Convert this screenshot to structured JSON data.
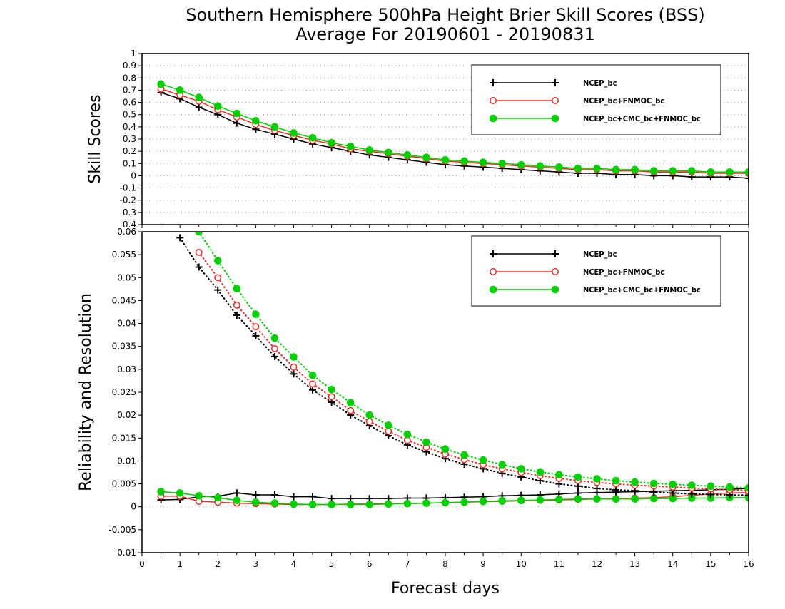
{
  "title": {
    "line1": "Southern Hemisphere 500hPa Height Brier Skill Scores (BSS)",
    "line2": "Average For 20190601 - 20190831"
  },
  "xlabel": "Forecast days",
  "colors": {
    "NCEP_bc": "#000000",
    "NCEP_bc+FNMOC_bc": "#e8302a",
    "NCEP_bc+CMC_bc+FNMOC_bc": "#00d000"
  },
  "chart_data": [
    {
      "type": "line",
      "panel": "top",
      "ylabel": "Skill Scores",
      "xlim": [
        0,
        16
      ],
      "ylim": [
        -0.4,
        1
      ],
      "xticks": [
        "0",
        "1",
        "2",
        "3",
        "4",
        "5",
        "6",
        "7",
        "8",
        "9",
        "10",
        "11",
        "12",
        "13",
        "14",
        "15",
        "16"
      ],
      "yticks": [
        "1",
        "0.9",
        "0.8",
        "0.7",
        "0.6",
        "0.5",
        "0.4",
        "0.3",
        "0.2",
        "0.1",
        "0",
        "-0.1",
        "-0.2",
        "-0.3",
        "-0.4"
      ],
      "grid": true,
      "legend_position": "top-right",
      "x": [
        0.5,
        1,
        1.5,
        2,
        2.5,
        3,
        3.5,
        4,
        4.5,
        5,
        5.5,
        6,
        6.5,
        7,
        7.5,
        8,
        8.5,
        9,
        9.5,
        10,
        10.5,
        11,
        11.5,
        12,
        12.5,
        13,
        13.5,
        14,
        14.5,
        15,
        15.5,
        16
      ],
      "series": [
        {
          "name": "NCEP_bc",
          "marker": "plus",
          "line": "solid",
          "values": [
            0.68,
            0.63,
            0.56,
            0.5,
            0.43,
            0.38,
            0.34,
            0.3,
            0.26,
            0.23,
            0.2,
            0.17,
            0.15,
            0.13,
            0.11,
            0.09,
            0.08,
            0.07,
            0.06,
            0.05,
            0.04,
            0.03,
            0.02,
            0.02,
            0.01,
            0.01,
            0.0,
            0.0,
            -0.01,
            -0.01,
            -0.01,
            -0.02
          ]
        },
        {
          "name": "NCEP_bc+FNMOC_bc",
          "marker": "open-circle",
          "line": "solid",
          "values": [
            0.71,
            0.66,
            0.61,
            0.54,
            0.48,
            0.42,
            0.37,
            0.33,
            0.29,
            0.26,
            0.22,
            0.2,
            0.18,
            0.16,
            0.14,
            0.12,
            0.11,
            0.1,
            0.09,
            0.08,
            0.07,
            0.06,
            0.05,
            0.05,
            0.04,
            0.04,
            0.03,
            0.03,
            0.03,
            0.02,
            0.02,
            0.02
          ]
        },
        {
          "name": "NCEP_bc+CMC_bc+FNMOC_bc",
          "marker": "filled-circle",
          "line": "solid",
          "values": [
            0.75,
            0.7,
            0.64,
            0.57,
            0.51,
            0.45,
            0.4,
            0.35,
            0.31,
            0.27,
            0.24,
            0.21,
            0.19,
            0.17,
            0.15,
            0.13,
            0.12,
            0.11,
            0.1,
            0.09,
            0.08,
            0.07,
            0.06,
            0.06,
            0.05,
            0.05,
            0.04,
            0.04,
            0.04,
            0.03,
            0.03,
            0.03
          ]
        }
      ]
    },
    {
      "type": "line",
      "panel": "bottom",
      "ylabel": "Reliability and Resolution",
      "xlim": [
        0,
        16
      ],
      "ylim": [
        -0.01,
        0.06
      ],
      "xticks": [
        "0",
        "1",
        "2",
        "3",
        "4",
        "5",
        "6",
        "7",
        "8",
        "9",
        "10",
        "11",
        "12",
        "13",
        "14",
        "15",
        "16"
      ],
      "yticks": [
        "0.06",
        "0.055",
        "0.05",
        "0.045",
        "0.04",
        "0.035",
        "0.03",
        "0.025",
        "0.02",
        "0.015",
        "0.01",
        "0.005",
        "0",
        "-0.005",
        "-0.01"
      ],
      "grid": false,
      "legend_position": "top-right",
      "x": [
        0.5,
        1,
        1.5,
        2,
        2.5,
        3,
        3.5,
        4,
        4.5,
        5,
        5.5,
        6,
        6.5,
        7,
        7.5,
        8,
        8.5,
        9,
        9.5,
        10,
        10.5,
        11,
        11.5,
        12,
        12.5,
        13,
        13.5,
        14,
        14.5,
        15,
        15.5,
        16
      ],
      "series": [
        {
          "name": "NCEP_bc",
          "role": "reliability",
          "marker": "plus",
          "line": "solid",
          "values": [
            0.0015,
            0.0016,
            0.0022,
            0.0023,
            0.003,
            0.0026,
            0.0026,
            0.0022,
            0.0022,
            0.0018,
            0.0018,
            0.0018,
            0.0018,
            0.0019,
            0.0019,
            0.002,
            0.0021,
            0.0022,
            0.0024,
            0.0025,
            0.0026,
            0.0028,
            0.003,
            0.0031,
            0.0032,
            0.0033,
            0.0034,
            0.0035,
            0.0036,
            0.0037,
            0.0038,
            0.004
          ]
        },
        {
          "name": "NCEP_bc+FNMOC_bc",
          "role": "reliability",
          "marker": "open-circle",
          "line": "solid",
          "values": [
            0.0023,
            0.0023,
            0.0012,
            0.001,
            0.0008,
            0.0007,
            0.0006,
            0.0005,
            0.0005,
            0.0005,
            0.0006,
            0.0006,
            0.0007,
            0.0007,
            0.0008,
            0.0009,
            0.001,
            0.0011,
            0.0012,
            0.0013,
            0.0014,
            0.0015,
            0.0016,
            0.0017,
            0.0018,
            0.0019,
            0.002,
            0.0022,
            0.0025,
            0.0028,
            0.003,
            0.0031
          ]
        },
        {
          "name": "NCEP_bc+CMC_bc+FNMOC_bc",
          "role": "reliability",
          "marker": "filled-circle",
          "line": "solid",
          "values": [
            0.0033,
            0.003,
            0.0024,
            0.002,
            0.0014,
            0.001,
            0.0008,
            0.0006,
            0.0005,
            0.0005,
            0.0005,
            0.0005,
            0.0006,
            0.0007,
            0.0008,
            0.0009,
            0.001,
            0.0012,
            0.0013,
            0.0014,
            0.0015,
            0.0016,
            0.0017,
            0.0017,
            0.0017,
            0.0017,
            0.0018,
            0.0018,
            0.0019,
            0.0019,
            0.002,
            0.002
          ]
        },
        {
          "name": "NCEP_bc",
          "role": "resolution",
          "marker": "plus",
          "line": "dotted",
          "values": [
            null,
            0.0587,
            0.0523,
            0.0473,
            0.0418,
            0.0373,
            0.0328,
            0.029,
            0.0255,
            0.0228,
            0.02,
            0.0177,
            0.0155,
            0.0135,
            0.012,
            0.0105,
            0.0093,
            0.0083,
            0.0073,
            0.0065,
            0.0057,
            0.005,
            0.0045,
            0.004,
            0.0037,
            0.0035,
            0.0032,
            0.003,
            0.0028,
            0.0027,
            0.0026,
            0.0025
          ]
        },
        {
          "name": "NCEP_bc+FNMOC_bc",
          "role": "resolution",
          "marker": "open-circle",
          "line": "dotted",
          "values": [
            null,
            null,
            0.0555,
            0.05,
            0.044,
            0.0393,
            0.0345,
            0.0305,
            0.0268,
            0.024,
            0.021,
            0.0186,
            0.0165,
            0.0145,
            0.013,
            0.0115,
            0.0103,
            0.0092,
            0.0083,
            0.0075,
            0.0068,
            0.0062,
            0.0057,
            0.0053,
            0.005,
            0.0047,
            0.0045,
            0.0043,
            0.0041,
            0.0039,
            0.0037,
            0.0035
          ]
        },
        {
          "name": "NCEP_bc+CMC_bc+FNMOC_bc",
          "role": "resolution",
          "marker": "filled-circle",
          "line": "dotted",
          "values": [
            null,
            null,
            0.06,
            0.0537,
            0.0476,
            0.042,
            0.0368,
            0.0327,
            0.0287,
            0.0256,
            0.0227,
            0.02,
            0.0178,
            0.0158,
            0.0141,
            0.0126,
            0.0113,
            0.0102,
            0.0092,
            0.0083,
            0.0076,
            0.007,
            0.0065,
            0.0061,
            0.0057,
            0.0054,
            0.0051,
            0.0049,
            0.0047,
            0.0045,
            0.0043,
            0.0041
          ]
        }
      ]
    }
  ]
}
